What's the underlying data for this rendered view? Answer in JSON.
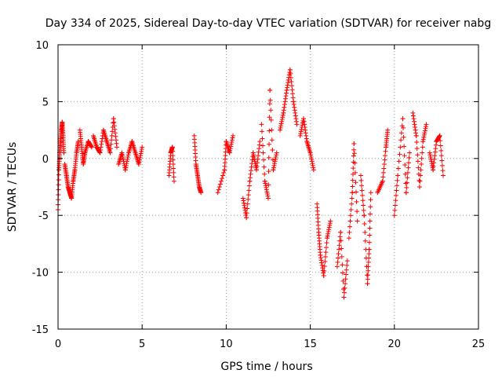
{
  "chart_data": {
    "type": "scatter",
    "title": "Day 334 of 2025, Sidereal Day-to-day VTEC variation (SDTVAR) for receiver nabg",
    "xlabel": "GPS time / hours",
    "ylabel": "SDTVAR / TECUs",
    "xlim": [
      0,
      25
    ],
    "ylim": [
      -15,
      10
    ],
    "xticks": [
      0,
      5,
      10,
      15,
      20,
      25
    ],
    "yticks": [
      -15,
      -10,
      -5,
      0,
      5,
      10
    ],
    "grid": true,
    "marker": "plus",
    "color": "#ff0000",
    "series": [
      {
        "name": "SDTVAR",
        "segments": [
          {
            "x_start": 0.0,
            "x_end": 0.35,
            "points": [
              [
                0.0,
                -4.5
              ],
              [
                0.05,
                -1.0
              ],
              [
                0.1,
                0.5
              ],
              [
                0.15,
                1.5
              ],
              [
                0.2,
                2.5
              ],
              [
                0.25,
                3.2
              ],
              [
                0.3,
                2.0
              ],
              [
                0.35,
                0.5
              ]
            ]
          },
          {
            "x_start": 0.35,
            "x_end": 1.2,
            "points": [
              [
                0.4,
                -0.5
              ],
              [
                0.5,
                -1.5
              ],
              [
                0.6,
                -2.5
              ],
              [
                0.7,
                -3.0
              ],
              [
                0.8,
                -3.5
              ],
              [
                0.9,
                -2.0
              ],
              [
                1.0,
                -1.0
              ],
              [
                1.1,
                0.5
              ],
              [
                1.2,
                1.5
              ]
            ]
          },
          {
            "x_start": 1.2,
            "x_end": 2.0,
            "points": [
              [
                1.3,
                2.5
              ],
              [
                1.4,
                1.0
              ],
              [
                1.5,
                -0.5
              ],
              [
                1.6,
                0.5
              ],
              [
                1.8,
                1.5
              ],
              [
                2.0,
                1.0
              ]
            ]
          },
          {
            "x_start": 2.0,
            "x_end": 3.5,
            "points": [
              [
                2.1,
                2.0
              ],
              [
                2.3,
                1.0
              ],
              [
                2.5,
                0.5
              ],
              [
                2.7,
                2.5
              ],
              [
                2.9,
                1.5
              ],
              [
                3.1,
                0.5
              ],
              [
                3.3,
                3.5
              ],
              [
                3.5,
                1.0
              ]
            ]
          },
          {
            "x_start": 3.5,
            "x_end": 5.0,
            "points": [
              [
                3.6,
                -0.5
              ],
              [
                3.8,
                0.5
              ],
              [
                4.0,
                -1.0
              ],
              [
                4.2,
                0.5
              ],
              [
                4.4,
                1.5
              ],
              [
                4.6,
                0.5
              ],
              [
                4.8,
                -0.5
              ],
              [
                5.0,
                1.0
              ]
            ]
          },
          {
            "x_start": 6.6,
            "x_end": 6.9,
            "points": [
              [
                6.6,
                -1.5
              ],
              [
                6.7,
                0.5
              ],
              [
                6.8,
                1.0
              ],
              [
                6.9,
                -2.0
              ]
            ]
          },
          {
            "x_start": 8.1,
            "x_end": 8.5,
            "points": [
              [
                8.1,
                2.0
              ],
              [
                8.2,
                -0.5
              ],
              [
                8.3,
                -1.5
              ],
              [
                8.4,
                -2.5
              ],
              [
                8.5,
                -3.0
              ]
            ]
          },
          {
            "x_start": 9.5,
            "x_end": 10.5,
            "points": [
              [
                9.5,
                -3.0
              ],
              [
                9.9,
                -1.0
              ],
              [
                10.0,
                1.5
              ],
              [
                10.2,
                0.5
              ],
              [
                10.4,
                2.0
              ]
            ]
          },
          {
            "x_start": 11.0,
            "x_end": 12.0,
            "points": [
              [
                11.0,
                -3.5
              ],
              [
                11.2,
                -5.2
              ],
              [
                11.4,
                -2.0
              ],
              [
                11.6,
                0.5
              ],
              [
                11.8,
                -1.0
              ],
              [
                12.0,
                1.5
              ]
            ]
          },
          {
            "x_start": 12.0,
            "x_end": 13.0,
            "points": [
              [
                12.1,
                3.0
              ],
              [
                12.3,
                -2.0
              ],
              [
                12.5,
                -3.5
              ],
              [
                12.6,
                6.0
              ],
              [
                12.8,
                -1.0
              ],
              [
                13.0,
                0.5
              ]
            ]
          },
          {
            "x_start": 13.0,
            "x_end": 14.3,
            "points": [
              [
                13.2,
                2.5
              ],
              [
                13.4,
                4.0
              ],
              [
                13.6,
                6.0
              ],
              [
                13.8,
                7.8
              ],
              [
                14.0,
                5.0
              ],
              [
                14.2,
                3.0
              ]
            ]
          },
          {
            "x_start": 14.3,
            "x_end": 15.3,
            "points": [
              [
                14.4,
                2.0
              ],
              [
                14.6,
                3.5
              ],
              [
                14.8,
                1.5
              ],
              [
                15.0,
                0.5
              ],
              [
                15.2,
                -1.0
              ]
            ]
          },
          {
            "x_start": 15.3,
            "x_end": 16.3,
            "points": [
              [
                15.4,
                -4.0
              ],
              [
                15.5,
                -6.5
              ],
              [
                15.6,
                -8.5
              ],
              [
                15.8,
                -10.3
              ],
              [
                16.0,
                -7.0
              ],
              [
                16.2,
                -5.5
              ]
            ]
          },
          {
            "x_start": 16.5,
            "x_end": 17.2,
            "points": [
              [
                16.6,
                -9.5
              ],
              [
                16.8,
                -6.5
              ],
              [
                17.0,
                -12.2
              ],
              [
                17.2,
                -9.0
              ]
            ]
          },
          {
            "x_start": 17.3,
            "x_end": 17.8,
            "points": [
              [
                17.3,
                -7.0
              ],
              [
                17.5,
                -3.0
              ],
              [
                17.6,
                1.3
              ],
              [
                17.8,
                -5.5
              ]
            ]
          },
          {
            "x_start": 18.0,
            "x_end": 18.6,
            "points": [
              [
                18.0,
                -1.5
              ],
              [
                18.2,
                -5.0
              ],
              [
                18.4,
                -11.0
              ],
              [
                18.5,
                -8.0
              ],
              [
                18.6,
                -3.0
              ]
            ]
          },
          {
            "x_start": 19.0,
            "x_end": 19.6,
            "points": [
              [
                19.0,
                -3.0
              ],
              [
                19.3,
                -2.0
              ],
              [
                19.5,
                1.0
              ],
              [
                19.6,
                2.5
              ]
            ]
          },
          {
            "x_start": 20.0,
            "x_end": 21.0,
            "points": [
              [
                20.0,
                -5.0
              ],
              [
                20.2,
                -1.5
              ],
              [
                20.5,
                3.5
              ],
              [
                20.7,
                -3.0
              ],
              [
                20.9,
                0.5
              ]
            ]
          },
          {
            "x_start": 21.0,
            "x_end": 22.0,
            "points": [
              [
                21.1,
                4.0
              ],
              [
                21.3,
                2.0
              ],
              [
                21.5,
                -2.5
              ],
              [
                21.7,
                1.5
              ],
              [
                21.9,
                3.0
              ]
            ]
          },
          {
            "x_start": 22.0,
            "x_end": 22.9,
            "points": [
              [
                22.1,
                0.5
              ],
              [
                22.3,
                -1.0
              ],
              [
                22.5,
                1.5
              ],
              [
                22.7,
                2.0
              ],
              [
                22.9,
                -1.5
              ]
            ]
          }
        ]
      }
    ]
  }
}
